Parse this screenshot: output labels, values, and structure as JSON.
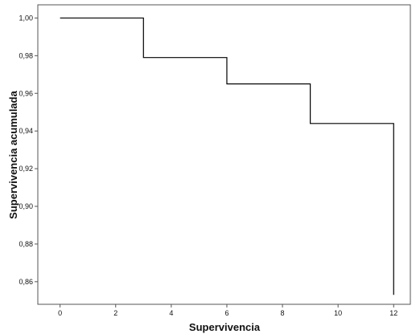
{
  "chart_data": {
    "type": "line",
    "step": true,
    "xlabel": "Supervivencia",
    "ylabel": "Supervivencia acumulada",
    "xlim": [
      -0.8,
      12.6
    ],
    "ylim": [
      0.848,
      1.007
    ],
    "x_ticks": [
      0,
      2,
      4,
      6,
      8,
      10,
      12
    ],
    "y_ticks": [
      1.0,
      0.98,
      0.96,
      0.94,
      0.92,
      0.9,
      0.88,
      0.86
    ],
    "x_tick_labels": [
      "0",
      "2",
      "4",
      "6",
      "8",
      "10",
      "12"
    ],
    "y_tick_labels": [
      "1,00",
      "0,98",
      "0,96",
      "0,94",
      "0,92",
      "0,90",
      "0,88",
      "0,86"
    ],
    "grid": false,
    "line_color": "#000000",
    "series": [
      {
        "x": [
          0,
          3,
          6,
          9,
          12,
          12
        ],
        "y": [
          1.0,
          0.979,
          0.965,
          0.944,
          0.944,
          0.853
        ]
      }
    ]
  }
}
